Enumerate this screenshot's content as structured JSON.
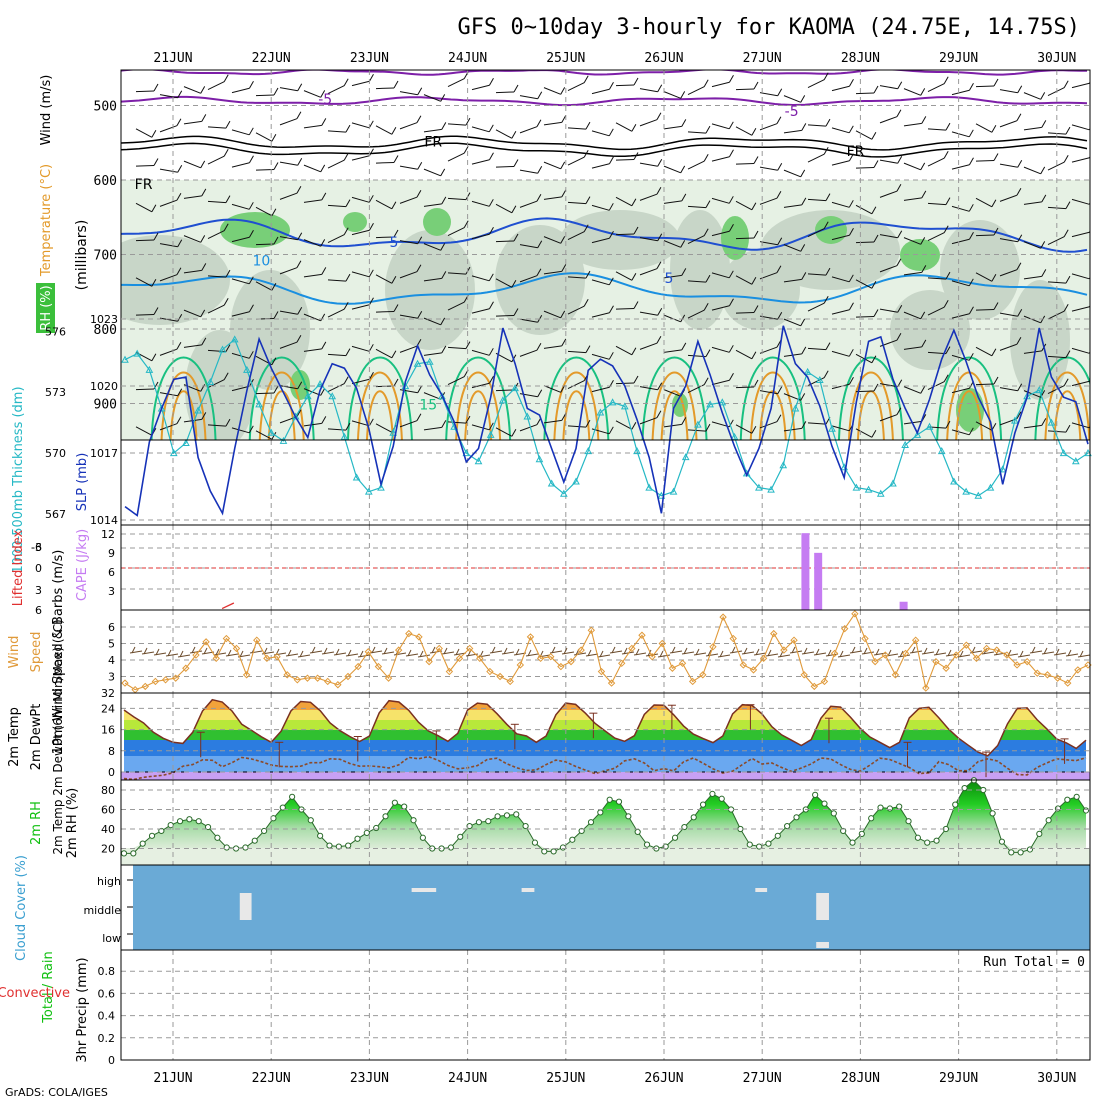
{
  "title": "GFS 0~10day 3-hourly for KAOMA (24.75E, 14.75S)",
  "credit": "GrADS: COLA/IGES",
  "date_labels": [
    "21JUN",
    "22JUN",
    "23JUN",
    "24JUN",
    "25JUN",
    "26JUN",
    "27JUN",
    "28JUN",
    "29JUN",
    "30JUN"
  ],
  "colors": {
    "purple": "#7d1fa8",
    "black": "#000000",
    "blue": "#1f4fd0",
    "skyblue": "#1a8fe0",
    "green": "#18c080",
    "orange": "#e39a2a",
    "magenta": "#d0106a",
    "cyan": "#25b8c5",
    "navy": "#1632b8",
    "violet": "#c57cf2",
    "wind_orange": "#e09a3a",
    "rh_green": "#11c011",
    "cloud_blue": "#6aaad6",
    "red": "#e03030"
  },
  "chart_data": [
    {
      "id": "upper",
      "type": "contour",
      "ylabel_parts": [
        "RH (%)",
        "Temperature (°C)",
        "Wind (m/s)"
      ],
      "ylabel_inner": "(millibars)",
      "y_ticks": [
        500,
        600,
        700,
        800,
        900
      ],
      "contour_labels": [
        {
          "text": "-5",
          "x_day": 1.55,
          "p": 498
        },
        {
          "text": "-5",
          "x_day": 6.3,
          "p": 514
        },
        {
          "text": "FR",
          "x_day": 2.65,
          "p": 555
        },
        {
          "text": "FR",
          "x_day": 6.95,
          "p": 568
        },
        {
          "text": "FR",
          "x_day": -0.3,
          "p": 612
        },
        {
          "text": "10",
          "x_day": 0.9,
          "p": 715
        },
        {
          "text": "5",
          "x_day": 2.25,
          "p": 690
        },
        {
          "text": "5",
          "x_day": 5.05,
          "p": 738
        },
        {
          "text": "15",
          "x_day": 2.6,
          "p": 908
        }
      ]
    },
    {
      "id": "slp",
      "type": "line",
      "ylabel_left": "1000-500mb Thickness (dm)",
      "ylabel_right": "SLP (mb)",
      "left_ticks": [
        567,
        570,
        573,
        576
      ],
      "right_ticks": [
        1014,
        1017,
        1020,
        1023
      ],
      "slp": [
        1014.6,
        1014.2,
        1017.5,
        1019.0,
        1020.3,
        1020.4,
        1016.8,
        1015.3,
        1014.3,
        1017.2,
        1019.8,
        1022.1,
        1020.8,
        1019.7,
        1018.6,
        1017.7,
        1019.8,
        1021.0,
        1020.8,
        1019.9,
        1018.1,
        1015.6,
        1017.3,
        1020.2,
        1021.8,
        1020.5,
        1019.6,
        1018.4,
        1016.6,
        1017.2,
        1019.5,
        1022.6,
        1021.0,
        1019.0,
        1018.7,
        1017.2,
        1015.7,
        1017.2,
        1020.7,
        1021.2,
        1020.9,
        1020.0,
        1018.5,
        1016.8,
        1014.3,
        1019.0,
        1020.0,
        1022.0,
        1020.5,
        1018.8,
        1017.3,
        1016.0,
        1017.2,
        1019.0,
        1022.7,
        1021.0,
        1020.4,
        1019.1,
        1017.3,
        1015.9,
        1019.3,
        1022.0,
        1022.2,
        1020.3,
        1019.0,
        1017.9,
        1019.4,
        1021.2,
        1022.5,
        1021.1,
        1019.5,
        1018.4,
        1015.6,
        1017.9,
        1019.5,
        1022.6,
        1020.4,
        1019.5,
        1019.3,
        1017.4
      ],
      "thickness": [
        574.6,
        574.9,
        574.1,
        572.2,
        570.0,
        570.5,
        572.1,
        573.5,
        575.1,
        575.6,
        574.1,
        572.4,
        571.0,
        570.6,
        571.8,
        572.8,
        573.4,
        572.8,
        570.8,
        568.8,
        568.1,
        568.3,
        571.0,
        573.3,
        574.4,
        574.5,
        572.8,
        571.3,
        570.0,
        569.6,
        570.9,
        572.6,
        573.2,
        571.8,
        569.7,
        568.5,
        568.0,
        568.6,
        570.1,
        572.0,
        572.5,
        572.3,
        570.1,
        568.3,
        567.9,
        568.1,
        569.8,
        571.4,
        572.4,
        572.5,
        570.8,
        569.0,
        568.3,
        568.2,
        569.4,
        572.2,
        574.0,
        573.6,
        571.2,
        569.3,
        568.3,
        568.2,
        568.0,
        568.5,
        570.4,
        570.9,
        571.3,
        570.1,
        568.6,
        568.1,
        567.9,
        568.3,
        569.2,
        571.6,
        572.8,
        573.1,
        571.5,
        570.0,
        569.6,
        570.0
      ]
    },
    {
      "id": "cape",
      "type": "bar",
      "ylabel_left": "Lifted Index",
      "ylabel_right": "CAPE (J/kg)",
      "left_ticks": [
        "-6",
        "-3",
        "0",
        "3",
        "6"
      ],
      "right_ticks": [
        3,
        6,
        9,
        12
      ],
      "cape_bars": [
        {
          "x_day": 6.44,
          "value": 12.1
        },
        {
          "x_day": 6.57,
          "value": 9.0
        },
        {
          "x_day": 7.44,
          "value": 1.3
        }
      ],
      "lifted_index_line": {
        "from_day": 0.5,
        "to_day": 0.62,
        "from_value": 5.8,
        "to_value": 5.0
      }
    },
    {
      "id": "wind10m",
      "type": "line",
      "ylabel": "10m Wind Speed & Barbs (m/s)",
      "y_ticks": [
        3,
        4,
        5,
        6
      ],
      "y_bottom_label": "32",
      "speed": [
        2.6,
        2.2,
        2.4,
        2.7,
        2.8,
        2.9,
        3.5,
        4.3,
        5.1,
        4.1,
        5.3,
        4.7,
        3.1,
        5.2,
        4.1,
        4.2,
        3.1,
        2.8,
        2.9,
        2.9,
        2.7,
        2.5,
        3.0,
        3.6,
        4.5,
        3.6,
        2.9,
        4.6,
        5.6,
        5.4,
        3.9,
        4.7,
        3.3,
        4.1,
        4.7,
        4.1,
        3.3,
        3.0,
        2.7,
        3.7,
        5.4,
        4.1,
        4.2,
        3.6,
        3.9,
        4.6,
        5.8,
        3.3,
        2.6,
        3.8,
        4.7,
        5.5,
        4.2,
        5.0,
        3.5,
        3.8,
        2.7,
        3.1,
        4.8,
        6.6,
        5.3,
        3.7,
        3.4,
        4.1,
        5.6,
        4.6,
        5.2,
        3.1,
        2.4,
        2.7,
        4.4,
        5.9,
        6.8,
        5.3,
        3.9,
        4.3,
        3.1,
        4.4,
        5.2,
        2.3,
        3.9,
        3.5,
        4.3,
        4.9,
        4.1,
        4.7,
        4.6,
        4.3,
        3.7,
        3.9,
        3.2,
        3.1,
        2.9,
        2.6,
        3.4,
        3.7
      ]
    },
    {
      "id": "temp2m",
      "type": "area",
      "ylabel": "2m Temp 2m DewPt (6hr Min/Max) (°C)",
      "y_ticks": [
        0,
        8,
        16,
        24
      ],
      "temp": [
        23.4,
        20.8,
        18.5,
        15.0,
        12.7,
        11.2,
        10.8,
        15.0,
        23.0,
        27.3,
        26.4,
        23.0,
        18.0,
        15.7,
        13.3,
        11.2,
        15.4,
        23.0,
        26.6,
        26.3,
        23.1,
        18.5,
        15.6,
        13.4,
        11.5,
        13.6,
        22.3,
        26.9,
        26.4,
        23.3,
        18.8,
        15.5,
        13.7,
        11.6,
        14.6,
        23.4,
        26.0,
        25.6,
        22.0,
        18.0,
        14.4,
        13.6,
        11.2,
        13.6,
        21.6,
        26.0,
        25.5,
        22.2,
        18.3,
        15.5,
        12.8,
        11.6,
        13.7,
        21.7,
        25.3,
        25.2,
        21.6,
        17.4,
        14.3,
        12.6,
        11.1,
        13.6,
        21.9,
        25.4,
        25.1,
        21.9,
        17.1,
        14.0,
        12.0,
        10.0,
        12.2,
        20.3,
        24.8,
        24.5,
        20.7,
        16.5,
        13.2,
        11.2,
        9.2,
        11.2,
        20.4,
        24.0,
        24.4,
        20.5,
        16.2,
        12.8,
        10.1,
        7.5,
        6.1,
        10.0,
        18.2,
        24.0,
        24.2,
        19.8,
        16.3,
        12.5,
        11.0,
        8.9,
        12.0
      ],
      "dewpoint": [
        -2.5,
        -2.8,
        -2.0,
        -1.6,
        -1.2,
        -0.3,
        2.2,
        2.8,
        4.6,
        4.4,
        2.0,
        3.5,
        5.5,
        4.9,
        3.9,
        2.6,
        2.1,
        2.0,
        2.2,
        3.5,
        3.5,
        5.0,
        4.8,
        3.2,
        2.2,
        2.3,
        2.0,
        1.5,
        2.7,
        5.5,
        5.0,
        5.8,
        4.4,
        2.5,
        1.2,
        1.6,
        2.4,
        4.7,
        5.2,
        3.1,
        1.6,
        0.6,
        0.8,
        2.8,
        4.5,
        3.8,
        2.1,
        0.7,
        -0.6,
        0.5,
        1.4,
        4.2,
        5.0,
        3.4,
        0.5,
        1.3,
        0.4,
        3.8,
        5.3,
        3.3,
        1.2,
        -0.4,
        0.3,
        2.8,
        5.1,
        3.0,
        3.4,
        1.7,
        0.2,
        1.5,
        3.0,
        5.3,
        4.9,
        2.8,
        1.0,
        0.3,
        2.6,
        5.2,
        4.7,
        3.2,
        1.7,
        -0.6,
        -0.3,
        3.9,
        2.8,
        0.5,
        0.5,
        3.9,
        5.0,
        4.1,
        1.4,
        -1.0,
        -1.1,
        1.7,
        3.4,
        5.0,
        4.6,
        4.3,
        5.4
      ]
    },
    {
      "id": "rh2m",
      "type": "area",
      "ylabel": "2m RH (%)",
      "y_ticks": [
        20,
        40,
        60,
        80
      ],
      "rh": [
        15,
        15,
        25,
        33,
        38,
        44,
        48,
        50,
        48,
        42,
        31,
        21,
        20,
        21,
        28,
        38,
        51,
        62,
        73,
        60,
        49,
        33,
        23,
        22,
        23,
        30,
        36,
        41,
        53,
        67,
        63,
        49,
        31,
        20,
        20,
        21,
        32,
        43,
        47,
        48,
        53,
        54,
        55,
        43,
        26,
        17,
        17,
        21,
        29,
        38,
        47,
        57,
        70,
        68,
        53,
        37,
        24,
        20,
        22,
        31,
        42,
        52,
        65,
        76,
        71,
        60,
        40,
        24,
        22,
        25,
        33,
        43,
        52,
        60,
        75,
        66,
        56,
        38,
        26,
        35,
        51,
        62,
        61,
        63,
        48,
        31,
        26,
        28,
        40,
        65,
        82,
        90,
        80,
        56,
        27,
        16,
        16,
        19,
        35,
        49,
        61,
        70,
        73,
        59
      ]
    },
    {
      "id": "cloud",
      "type": "heatmap",
      "ylabel": "Cloud Cover (%)",
      "levels": [
        "high",
        "middle",
        "low"
      ],
      "gaps": [
        {
          "level": "middle",
          "from_day": 0.68,
          "to_day": 0.8
        },
        {
          "level": "high",
          "from_day": 2.43,
          "to_day": 2.68
        },
        {
          "level": "high",
          "from_day": 3.55,
          "to_day": 3.68
        },
        {
          "level": "high",
          "from_day": 5.93,
          "to_day": 6.05
        },
        {
          "level": "middle",
          "from_day": 6.55,
          "to_day": 6.68
        },
        {
          "level": "low",
          "from_day": 6.55,
          "to_day": 6.68
        }
      ]
    },
    {
      "id": "precip",
      "type": "bar",
      "ylabel_left_parts": [
        "Total / Rain",
        "Convective"
      ],
      "ylabel": "3hr Precip (mm)",
      "y_ticks": [
        "0",
        "0.2",
        "0.4",
        "0.6",
        "0.8"
      ],
      "run_total_label": "Run Total = 0",
      "values": []
    }
  ]
}
